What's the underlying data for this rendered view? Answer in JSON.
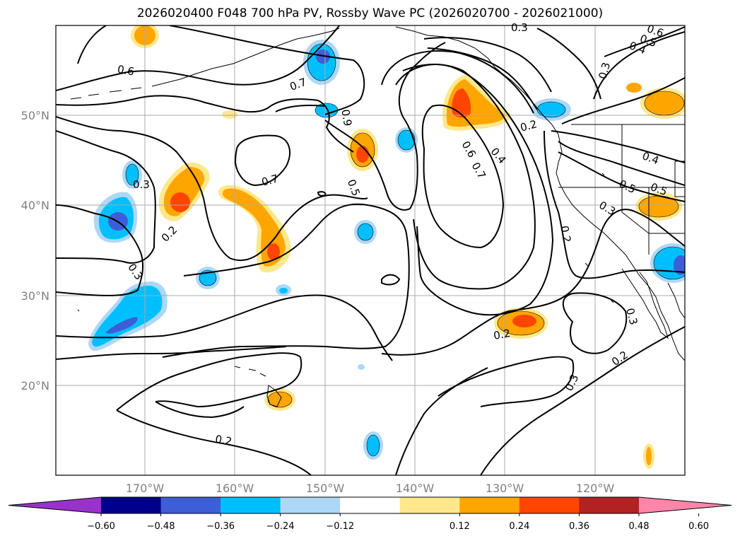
{
  "title": "2026020400 F048 700 hPa PV, Rossby Wave PC (2026020700 - 2026021000)",
  "lat_labels": [
    "50°N",
    "40°N",
    "30°N",
    "20°N"
  ],
  "lon_labels": [
    "170°W",
    "160°W",
    "150°W",
    "140°W",
    "130°W",
    "120°W"
  ],
  "colorbar": {
    "ticks": [
      "−0.60",
      "−0.48",
      "−0.36",
      "−0.24",
      "−0.12",
      "0.12",
      "0.24",
      "0.36",
      "0.48",
      "0.60"
    ],
    "colors": [
      "#9932cc",
      "#00008b",
      "#3d5ed6",
      "#00bfff",
      "#add8f5",
      "#ffffff",
      "#ffe88c",
      "#ffa500",
      "#ff4500",
      "#b22222",
      "#ff85aa"
    ]
  },
  "contour_labels": [
    "0.6",
    "0.7",
    "0.9",
    "0.3",
    "0.2",
    "0.7",
    "0.5",
    "0.3",
    "0.6",
    "0.7",
    "0.4",
    "0.2",
    "0.3",
    "0.4",
    "0.5",
    "0.6",
    "0.4",
    "0.5",
    "0.3",
    "0.2",
    "0.3",
    "0.2",
    "0.3",
    "0.2",
    "0.5",
    "0.3",
    "0.2"
  ],
  "colors": {
    "grid": "#a9a9a9",
    "coast": "#000000",
    "contour": "#000000"
  }
}
